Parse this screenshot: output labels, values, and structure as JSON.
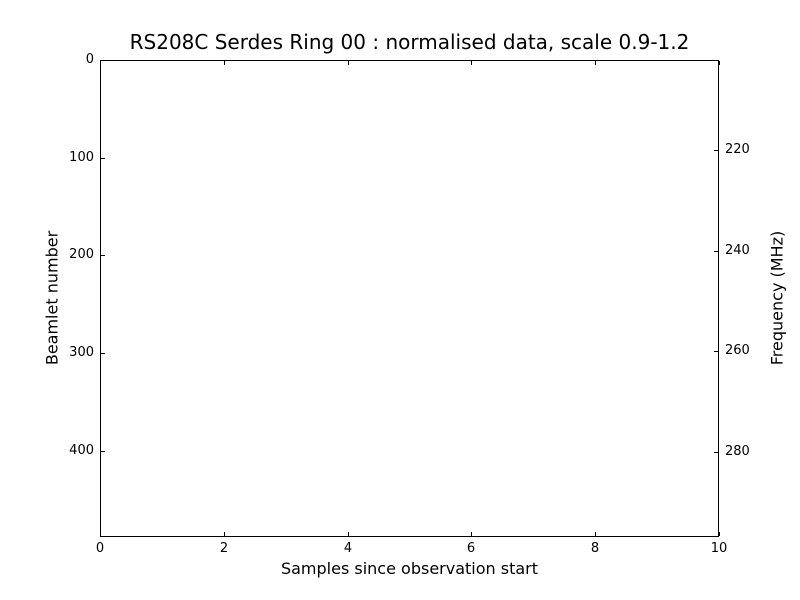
{
  "chart_data": {
    "type": "heatmap",
    "title": "RS208C Serdes Ring 00 : normalised data, scale 0.9-1.2",
    "station": "RS208C",
    "ring": "00",
    "scale_range": "0.9-1.2",
    "xlabel": "Samples since observation start",
    "ylabel_left": "Beamlet number",
    "ylabel_right": "Frequency (MHz)",
    "x_ticks": [
      0,
      2,
      4,
      6,
      8,
      10
    ],
    "xlim": [
      0,
      10
    ],
    "y_left_ticks": [
      0,
      100,
      200,
      300,
      400
    ],
    "ylim_left": [
      0,
      488
    ],
    "y_left_inverted": true,
    "y_right_ticks": [
      220,
      240,
      260,
      280
    ],
    "ylim_right": [
      202,
      297
    ],
    "grid": false,
    "legend": null,
    "values": [],
    "plot_area_empty": true,
    "colors": {
      "axes": "#000000",
      "text": "#000000",
      "background": "#ffffff",
      "plot_background": "#ffffff"
    }
  }
}
